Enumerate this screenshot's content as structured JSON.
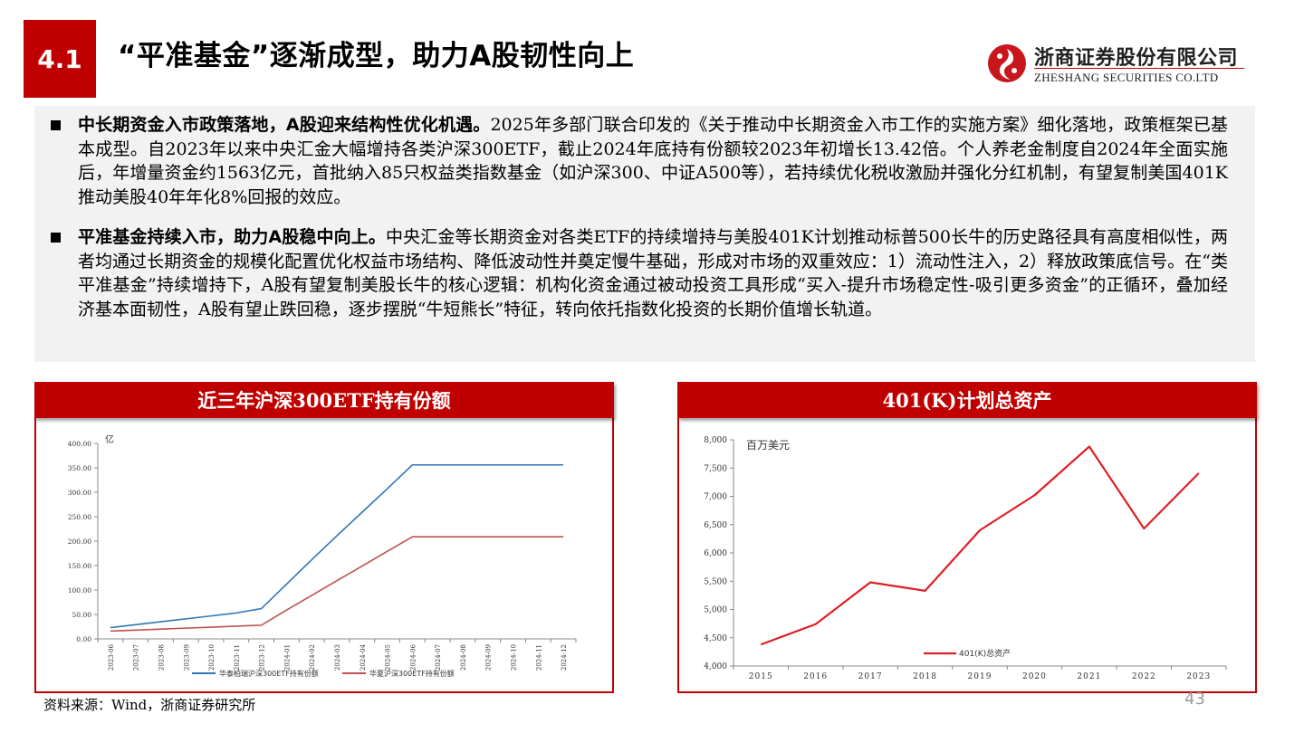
{
  "header": {
    "section_number": "4.1",
    "title": "“平准基金”逐渐成型，助力A股韧性向上",
    "logo_cn": "浙商证券股份有限公司",
    "logo_en": "ZHESHANG SECURITIES CO.LTD"
  },
  "bullets": [
    {
      "bold": "中长期资金入市政策落地，A股迎来结构性优化机遇。",
      "text": "2025年多部门联合印发的《关于推动中长期资金入市工作的实施方案》细化落地，政策框架已基本成型。自2023年以来中央汇金大幅增持各类沪深300ETF，截止2024年底持有份额较2023年初增长13.42倍。个人养老金制度自2024年全面实施后，年增量资金约1563亿元，首批纳入85只权益类指数基金（如沪深300、中证A500等），若持续优化税收激励并强化分红机制，有望复制美国401K推动美股40年年化8%回报的效应。"
    },
    {
      "bold": "平准基金持续入市，助力A股稳中向上。",
      "text": "中央汇金等长期资金对各类ETF的持续增持与美股401K计划推动标普500长牛的历史路径具有高度相似性，两者均通过长期资金的规模化配置优化权益市场结构、降低波动性并奠定慢牛基础，形成对市场的双重效应：1）流动性注入，2）释放政策底信号。在“类平准基金”持续增持下，A股有望复制美股长牛的核心逻辑：机构化资金通过被动投资工具形成“买入-提升市场稳定性-吸引更多资金”的正循环，叠加经济基本面韧性，A股有望止跌回稳，逐步摆脱“牛短熊长”特征，转向依托指数化投资的长期价值增长轨道。"
    }
  ],
  "panels": {
    "left_title": "近三年沪深300ETF持有份额",
    "right_title": "401(K)计划总资产"
  },
  "chart_data": [
    {
      "type": "line",
      "ylabel": "亿",
      "ylim": [
        0,
        400
      ],
      "yticks": [
        "0.00",
        "50.00",
        "100.00",
        "150.00",
        "200.00",
        "250.00",
        "300.00",
        "350.00",
        "400.00"
      ],
      "categories": [
        "2023-06",
        "2023-07",
        "2023-08",
        "2023-09",
        "2023-10",
        "2023-11",
        "2023-12",
        "2024-01",
        "2024-02",
        "2024-03",
        "2024-04",
        "2024-05",
        "2024-06",
        "2024-07",
        "2024-08",
        "2024-09",
        "2024-10",
        "2024-11",
        "2024-12"
      ],
      "grid": false,
      "legend_position": "bottom",
      "series": [
        {
          "name": "华泰柏瑞沪深300ETF持有份额",
          "color": "#2e75b6",
          "values": [
            23,
            29,
            35,
            41,
            47,
            53,
            62,
            112,
            162,
            211,
            259,
            307,
            356,
            356,
            356,
            356,
            356,
            356,
            356
          ]
        },
        {
          "name": "华夏沪深300ETF持有份额",
          "color": "#c0504d",
          "values": [
            16,
            18,
            20,
            22,
            24,
            26,
            28,
            59,
            89,
            119,
            149,
            179,
            209,
            209,
            209,
            209,
            209,
            209,
            209
          ]
        }
      ]
    },
    {
      "type": "line",
      "ylabel": "百万美元",
      "ylim": [
        4000,
        8000
      ],
      "yticks": [
        "4,000",
        "4,500",
        "5,000",
        "5,500",
        "6,000",
        "6,500",
        "7,000",
        "7,500",
        "8,000"
      ],
      "categories": [
        "2015",
        "2016",
        "2017",
        "2018",
        "2019",
        "2020",
        "2021",
        "2022",
        "2023"
      ],
      "grid": false,
      "legend_position": "bottom-left",
      "series": [
        {
          "name": "401(K)总资产",
          "color": "#e01e25",
          "values": [
            4380,
            4740,
            5480,
            5330,
            6400,
            7020,
            7880,
            6430,
            7410
          ]
        }
      ]
    }
  ],
  "footer": {
    "source": "资料来源：Wind，浙商证券研究所",
    "page_number": "43"
  }
}
